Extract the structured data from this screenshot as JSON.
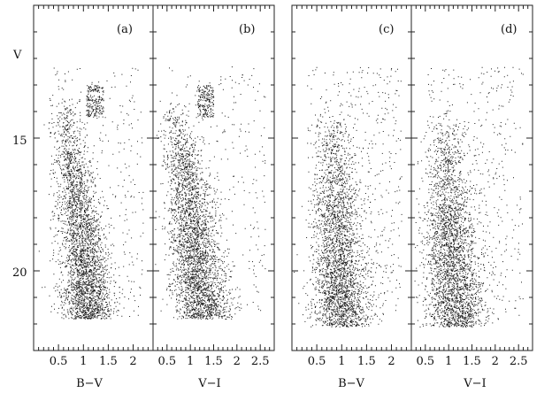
{
  "figure": {
    "y_axis_label": "V",
    "panels": [
      {
        "id": "a",
        "tag": "(a)",
        "xlabel": "B−V",
        "xticks": [
          "0.5",
          "1",
          "1.5",
          "2"
        ]
      },
      {
        "id": "b",
        "tag": "(b)",
        "xlabel": "V−I",
        "xticks": [
          "0.5",
          "1",
          "1.5",
          "2",
          "2.5"
        ]
      },
      {
        "id": "c",
        "tag": "(c)",
        "xlabel": "B−V",
        "xticks": [
          "0.5",
          "1",
          "1.5",
          "2"
        ]
      },
      {
        "id": "d",
        "tag": "(d)",
        "xlabel": "V−I",
        "xticks": [
          "0.5",
          "1",
          "1.5",
          "2",
          "2.5"
        ]
      }
    ],
    "yticks": [
      "15",
      "20"
    ]
  },
  "chart_data": [
    {
      "type": "scatter",
      "panel": "(a)",
      "xlabel": "B−V",
      "ylabel": "V",
      "xlim": [
        0.0,
        2.4
      ],
      "ylim": [
        23,
        10
      ],
      "y_inverted": true,
      "grid": false,
      "marker": "dot",
      "point_count_approx": 3500,
      "sequence": {
        "ridge": [
          [
            0.6,
            13.5
          ],
          [
            0.65,
            14.5
          ],
          [
            0.75,
            15.5
          ],
          [
            0.83,
            16.5
          ],
          [
            0.9,
            17.5
          ],
          [
            0.95,
            18.5
          ],
          [
            1.0,
            19.5
          ],
          [
            1.05,
            20.5
          ],
          [
            1.1,
            21.5
          ]
        ],
        "spread": 0.22
      },
      "clump": {
        "x": [
          1.05,
          1.4
        ],
        "y": [
          13.0,
          14.2
        ]
      }
    },
    {
      "type": "scatter",
      "panel": "(b)",
      "xlabel": "V−I",
      "ylabel": "V",
      "xlim": [
        0.2,
        2.8
      ],
      "ylim": [
        23,
        10
      ],
      "y_inverted": true,
      "grid": false,
      "marker": "dot",
      "point_count_approx": 3500,
      "sequence": {
        "ridge": [
          [
            0.6,
            13.5
          ],
          [
            0.7,
            14.5
          ],
          [
            0.82,
            15.5
          ],
          [
            0.92,
            16.5
          ],
          [
            1.0,
            17.5
          ],
          [
            1.07,
            18.5
          ],
          [
            1.13,
            19.5
          ],
          [
            1.2,
            20.5
          ],
          [
            1.27,
            21.5
          ]
        ],
        "spread": 0.25
      },
      "clump": {
        "x": [
          1.15,
          1.5
        ],
        "y": [
          13.0,
          14.2
        ]
      }
    },
    {
      "type": "scatter",
      "panel": "(c)",
      "xlabel": "B−V",
      "ylabel": "V",
      "xlim": [
        0.0,
        2.4
      ],
      "ylim": [
        23,
        10
      ],
      "y_inverted": true,
      "grid": false,
      "marker": "dot",
      "point_count_approx": 3200,
      "sequence": {
        "ridge": [
          [
            0.8,
            14.0
          ],
          [
            0.83,
            15.0
          ],
          [
            0.86,
            16.0
          ],
          [
            0.88,
            17.0
          ],
          [
            0.9,
            18.0
          ],
          [
            0.92,
            19.0
          ],
          [
            0.95,
            20.0
          ],
          [
            0.97,
            21.0
          ],
          [
            1.0,
            21.8
          ]
        ],
        "spread": 0.24
      }
    },
    {
      "type": "scatter",
      "panel": "(d)",
      "xlabel": "V−I",
      "ylabel": "V",
      "xlim": [
        0.2,
        2.8
      ],
      "ylim": [
        23,
        10
      ],
      "y_inverted": true,
      "grid": false,
      "marker": "dot",
      "point_count_approx": 3200,
      "sequence": {
        "ridge": [
          [
            0.9,
            14.0
          ],
          [
            0.93,
            15.0
          ],
          [
            0.96,
            16.0
          ],
          [
            0.99,
            17.0
          ],
          [
            1.02,
            18.0
          ],
          [
            1.05,
            19.0
          ],
          [
            1.09,
            20.0
          ],
          [
            1.13,
            21.0
          ],
          [
            1.17,
            21.8
          ]
        ],
        "spread": 0.27
      }
    }
  ]
}
